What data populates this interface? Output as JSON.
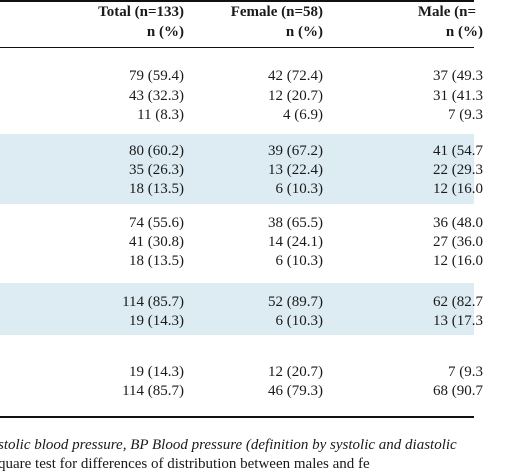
{
  "header": {
    "columns": [
      {
        "label": "Total (n=133)",
        "unit": "n (%)"
      },
      {
        "label": "Female (n=58)",
        "unit": "n (%)"
      },
      {
        "label": "Male (n=",
        "unit": "n (%)"
      }
    ]
  },
  "groups": [
    {
      "shaded": false,
      "rows": [
        {
          "total": "79 (59.4)",
          "female": "42 (72.4)",
          "male": "37 (49.3"
        },
        {
          "total": "43 (32.3)",
          "female": "12 (20.7)",
          "male": "31 (41.3"
        },
        {
          "total": "11 (8.3)",
          "female": "4 (6.9)",
          "male": "7 (9.3"
        }
      ]
    },
    {
      "shaded": true,
      "rows": [
        {
          "total": "80 (60.2)",
          "female": "39 (67.2)",
          "male": "41 (54.7"
        },
        {
          "total": "35 (26.3)",
          "female": "13 (22.4)",
          "male": "22 (29.3"
        },
        {
          "total": "18 (13.5)",
          "female": "6 (10.3)",
          "male": "12 (16.0"
        }
      ]
    },
    {
      "shaded": false,
      "rows": [
        {
          "total": "74 (55.6)",
          "female": "38 (65.5)",
          "male": "36 (48.0"
        },
        {
          "total": "41 (30.8)",
          "female": "14 (24.1)",
          "male": "27 (36.0"
        },
        {
          "total": "18 (13.5)",
          "female": "6 (10.3)",
          "male": "12 (16.0"
        }
      ]
    },
    {
      "shaded": true,
      "rows": [
        {
          "total": "114 (85.7)",
          "female": "52 (89.7)",
          "male": "62 (82.7"
        },
        {
          "total": "19 (14.3)",
          "female": "6 (10.3)",
          "male": "13 (17.3"
        }
      ]
    },
    {
      "shaded": false,
      "rows": [
        {
          "total": "19 (14.3)",
          "female": "12 (20.7)",
          "male": "7 (9.3"
        },
        {
          "total": "114 (85.7)",
          "female": "46 (79.3)",
          "male": "68 (90.7"
        }
      ]
    }
  ],
  "footnotes": [
    "stolic blood pressure, BP Blood pressure (definition by systolic and diastolic",
    "quare test for differences of distribution between males and fe"
  ]
}
